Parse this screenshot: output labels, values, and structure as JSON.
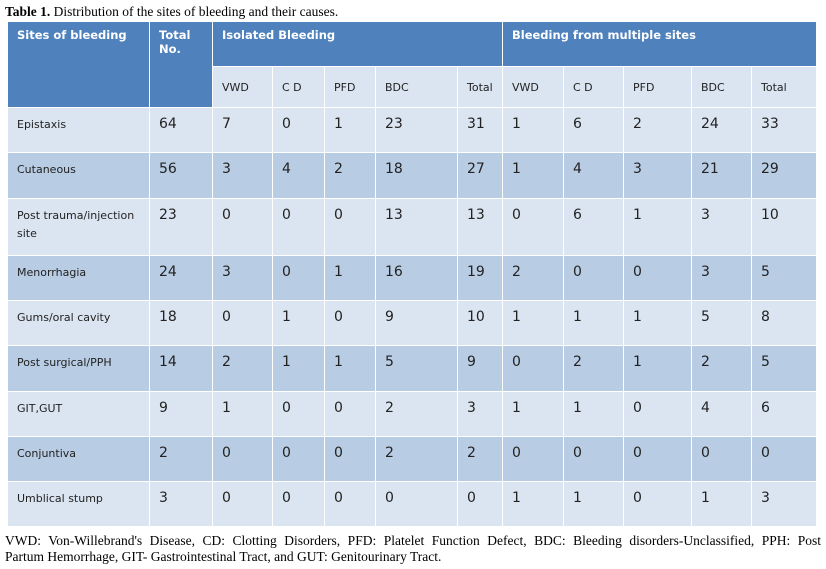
{
  "caption": {
    "label": "Table 1.",
    "text": "Distribution of the sites of bleeding and their causes."
  },
  "header": {
    "site": "Sites of bleeding",
    "total_no": "Total No.",
    "isolated": "Isolated Bleeding",
    "multiple": "Bleeding from multiple sites"
  },
  "subheaders": {
    "isolated": [
      "VWD",
      "C D",
      "PFD",
      "BDC",
      "Total"
    ],
    "multiple": [
      "VWD",
      "C D",
      "PFD",
      "BDC",
      "Total"
    ]
  },
  "rows": [
    {
      "site": "Epistaxis",
      "total": "64",
      "isolated": [
        "7",
        "0",
        "1",
        "23",
        "31"
      ],
      "multiple": [
        "1",
        "6",
        "2",
        "24",
        "33"
      ]
    },
    {
      "site": "Cutaneous",
      "total": "56",
      "isolated": [
        "3",
        "4",
        "2",
        "18",
        "27"
      ],
      "multiple": [
        "1",
        "4",
        "3",
        "21",
        "29"
      ]
    },
    {
      "site": "Post trauma/injection site",
      "total": "23",
      "isolated": [
        "0",
        "0",
        "0",
        "13",
        "13"
      ],
      "multiple": [
        "0",
        "6",
        "1",
        "3",
        "10"
      ]
    },
    {
      "site": "Menorrhagia",
      "total": "24",
      "isolated": [
        "3",
        "0",
        "1",
        "16",
        "19"
      ],
      "multiple": [
        "2",
        "0",
        "0",
        "3",
        "5"
      ]
    },
    {
      "site": "Gums/oral cavity",
      "total": "18",
      "isolated": [
        "0",
        "1",
        "0",
        "9",
        "10"
      ],
      "multiple": [
        "1",
        "1",
        "1",
        "5",
        "8"
      ]
    },
    {
      "site": "Post surgical/PPH",
      "total": "14",
      "isolated": [
        "2",
        "1",
        "1",
        "5",
        "9"
      ],
      "multiple": [
        "0",
        "2",
        "1",
        "2",
        "5"
      ]
    },
    {
      "site": "GIT,GUT",
      "total": "9",
      "isolated": [
        "1",
        "0",
        "0",
        "2",
        "3"
      ],
      "multiple": [
        "1",
        "1",
        "0",
        "4",
        "6"
      ]
    },
    {
      "site": "Conjuntiva",
      "total": "2",
      "isolated": [
        "0",
        "0",
        "0",
        "2",
        "2"
      ],
      "multiple": [
        "0",
        "0",
        "0",
        "0",
        "0"
      ]
    },
    {
      "site": "Umblical stump",
      "total": "3",
      "isolated": [
        "0",
        "0",
        "0",
        "0",
        "0"
      ],
      "multiple": [
        "1",
        "1",
        "0",
        "1",
        "3"
      ]
    }
  ],
  "footnote": {
    "line1": "VWD: Von-Willebrand's Disease, CD: Clotting Disorders, PFD: Platelet Function Defect, BDC: Bleeding disorders-Unclassified, PPH: Post",
    "line2": "Partum Hemorrhage, GIT- Gastrointestinal Tract, and GUT: Genitourinary Tract."
  },
  "colors": {
    "header": "#4f81bd",
    "row_light": "#dbe5f1",
    "row_dark": "#b8cce4"
  }
}
